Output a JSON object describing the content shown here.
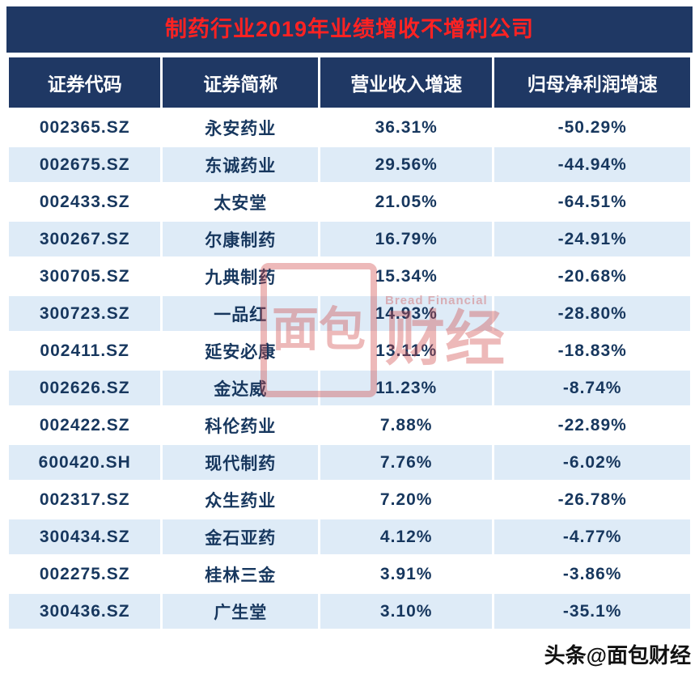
{
  "chart_data": {
    "type": "table",
    "title": "制药行业2019年业绩增收不增利公司",
    "columns": [
      "证券代码",
      "证券简称",
      "营业收入增速",
      "归母净利润增速"
    ],
    "rows": [
      [
        "002365.SZ",
        "永安药业",
        "36.31%",
        "-50.29%"
      ],
      [
        "002675.SZ",
        "东诚药业",
        "29.56%",
        "-44.94%"
      ],
      [
        "002433.SZ",
        "太安堂",
        "21.05%",
        "-64.51%"
      ],
      [
        "300267.SZ",
        "尔康制药",
        "16.79%",
        "-24.91%"
      ],
      [
        "300705.SZ",
        "九典制药",
        "15.34%",
        "-20.68%"
      ],
      [
        "300723.SZ",
        "一品红",
        "14.93%",
        "-28.80%"
      ],
      [
        "002411.SZ",
        "延安必康",
        "13.11%",
        "-18.83%"
      ],
      [
        "002626.SZ",
        "金达威",
        "11.23%",
        "-8.74%"
      ],
      [
        "002422.SZ",
        "科伦药业",
        "7.88%",
        "-22.89%"
      ],
      [
        "600420.SH",
        "现代制药",
        "7.76%",
        "-6.02%"
      ],
      [
        "002317.SZ",
        "众生药业",
        "7.20%",
        "-26.78%"
      ],
      [
        "300434.SZ",
        "金石亚药",
        "4.12%",
        "-4.77%"
      ],
      [
        "002275.SZ",
        "桂林三金",
        "3.91%",
        "-3.86%"
      ],
      [
        "300436.SZ",
        "广生堂",
        "3.10%",
        "-35.1%"
      ]
    ]
  },
  "watermark": {
    "logo_text": "面包",
    "main_text": "财经",
    "subtext": "Bread Financial"
  },
  "footer_watermark": "头条@面包财经",
  "colors": {
    "header_bg": "#1f3864",
    "title_text": "#ff2222",
    "row_alt_bg": "#deebf7",
    "cell_text": "#17375e",
    "watermark_red": "#d04a4a"
  }
}
